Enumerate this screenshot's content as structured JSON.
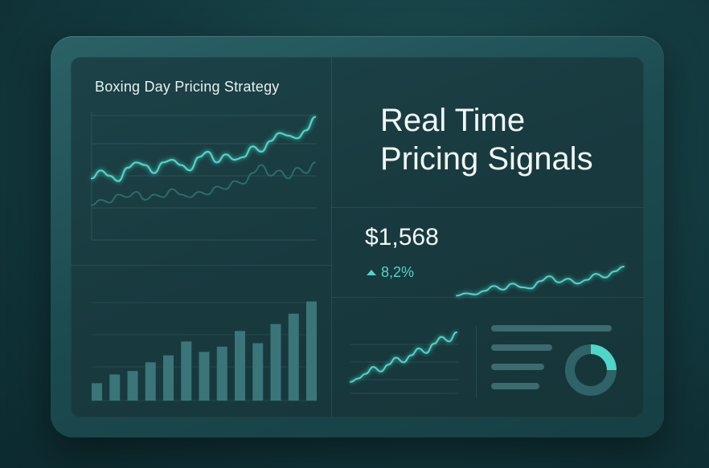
{
  "top_left_card": {
    "title": "Boxing Day Pricing Strategy"
  },
  "headline": {
    "line1": "Real Time",
    "line2": "Pricing Signals"
  },
  "metric": {
    "price": "$1,568",
    "change": "8,2%",
    "trend_icon": "triangle-up-icon"
  },
  "colors": {
    "accent": "#4fd6c8",
    "bar": "#3a7579",
    "secondary_line": "#2e6b6b"
  },
  "chart_data": [
    {
      "type": "line",
      "x": [
        0,
        1,
        2,
        3,
        4,
        5,
        6,
        7,
        8,
        9,
        10,
        11,
        12,
        13,
        14,
        15,
        16,
        17,
        18,
        19,
        20,
        21,
        22,
        23,
        24,
        25
      ],
      "series": [
        {
          "values": [
            40,
            46,
            42,
            38,
            48,
            52,
            50,
            44,
            52,
            54,
            50,
            46,
            56,
            60,
            52,
            58,
            54,
            56,
            64,
            60,
            68,
            74,
            72,
            70,
            76,
            86
          ]
        },
        {
          "values": [
            20,
            24,
            22,
            28,
            26,
            30,
            24,
            28,
            26,
            32,
            28,
            26,
            30,
            28,
            34,
            32,
            38,
            36,
            44,
            50,
            42,
            46,
            40,
            48,
            44,
            52
          ]
        }
      ]
    },
    {
      "type": "bar",
      "values": [
        10,
        15,
        17,
        22,
        26,
        34,
        28,
        31,
        40,
        33,
        44,
        50,
        57
      ]
    },
    {
      "type": "line",
      "series": [
        {
          "values": [
            10,
            12,
            11,
            14,
            18,
            15,
            20,
            17,
            16,
            22,
            26,
            21,
            24,
            20,
            23,
            28,
            25,
            30,
            34
          ]
        }
      ]
    },
    {
      "type": "line",
      "series": [
        {
          "values": [
            5,
            8,
            12,
            18,
            14,
            20,
            26,
            22,
            28,
            34,
            30,
            38,
            44,
            40,
            48
          ]
        }
      ]
    },
    {
      "type": "pie",
      "values": [
        25,
        75
      ]
    }
  ]
}
